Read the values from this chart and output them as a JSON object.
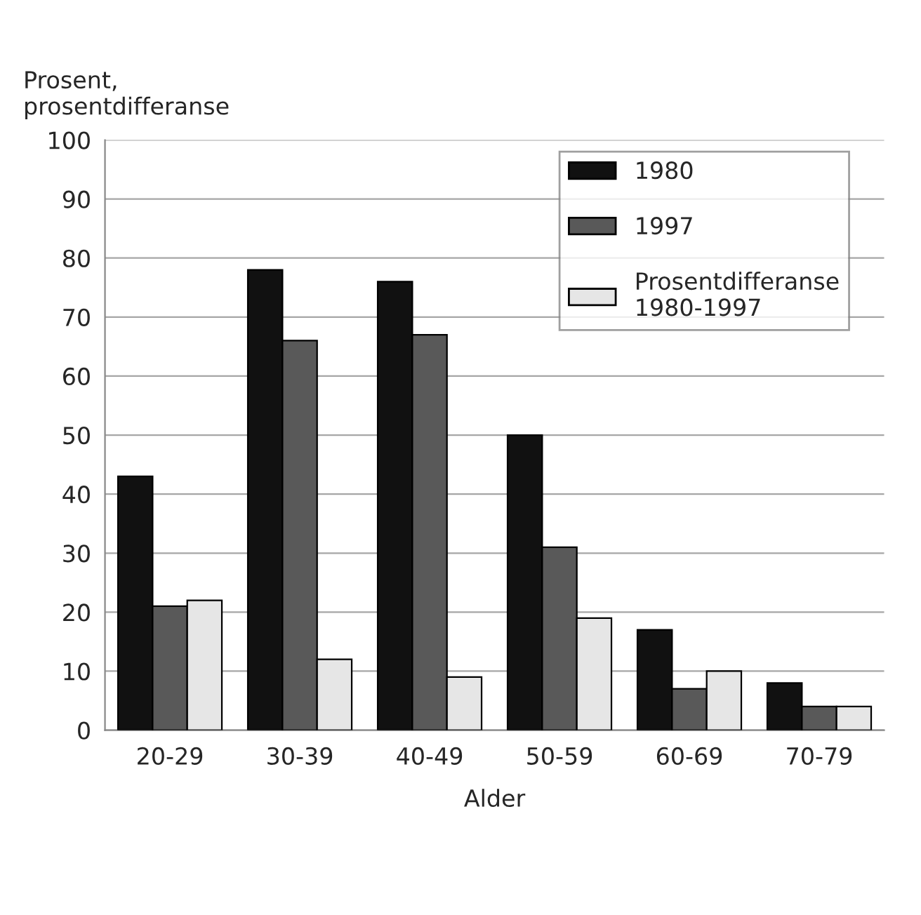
{
  "chart_data": {
    "type": "bar",
    "xlabel": "Alder",
    "ylabel": "Prosent,\nprosentdifferanse",
    "categories": [
      "20-29",
      "30-39",
      "40-49",
      "50-59",
      "60-69",
      "70-79"
    ],
    "series": [
      {
        "name": "1980",
        "color": "#111111",
        "values": [
          43,
          78,
          76,
          50,
          17,
          8
        ]
      },
      {
        "name": "1997",
        "color": "#595959",
        "values": [
          21,
          66,
          67,
          31,
          7,
          4
        ]
      },
      {
        "name": "Prosentdifferanse\n1980-1997",
        "color": "#e6e6e6",
        "values": [
          22,
          12,
          9,
          19,
          10,
          4
        ]
      }
    ],
    "ylim": [
      0,
      100
    ],
    "yticks": [
      0,
      10,
      20,
      30,
      40,
      50,
      60,
      70,
      80,
      90,
      100
    ],
    "grid": "y",
    "legend": "top right"
  }
}
